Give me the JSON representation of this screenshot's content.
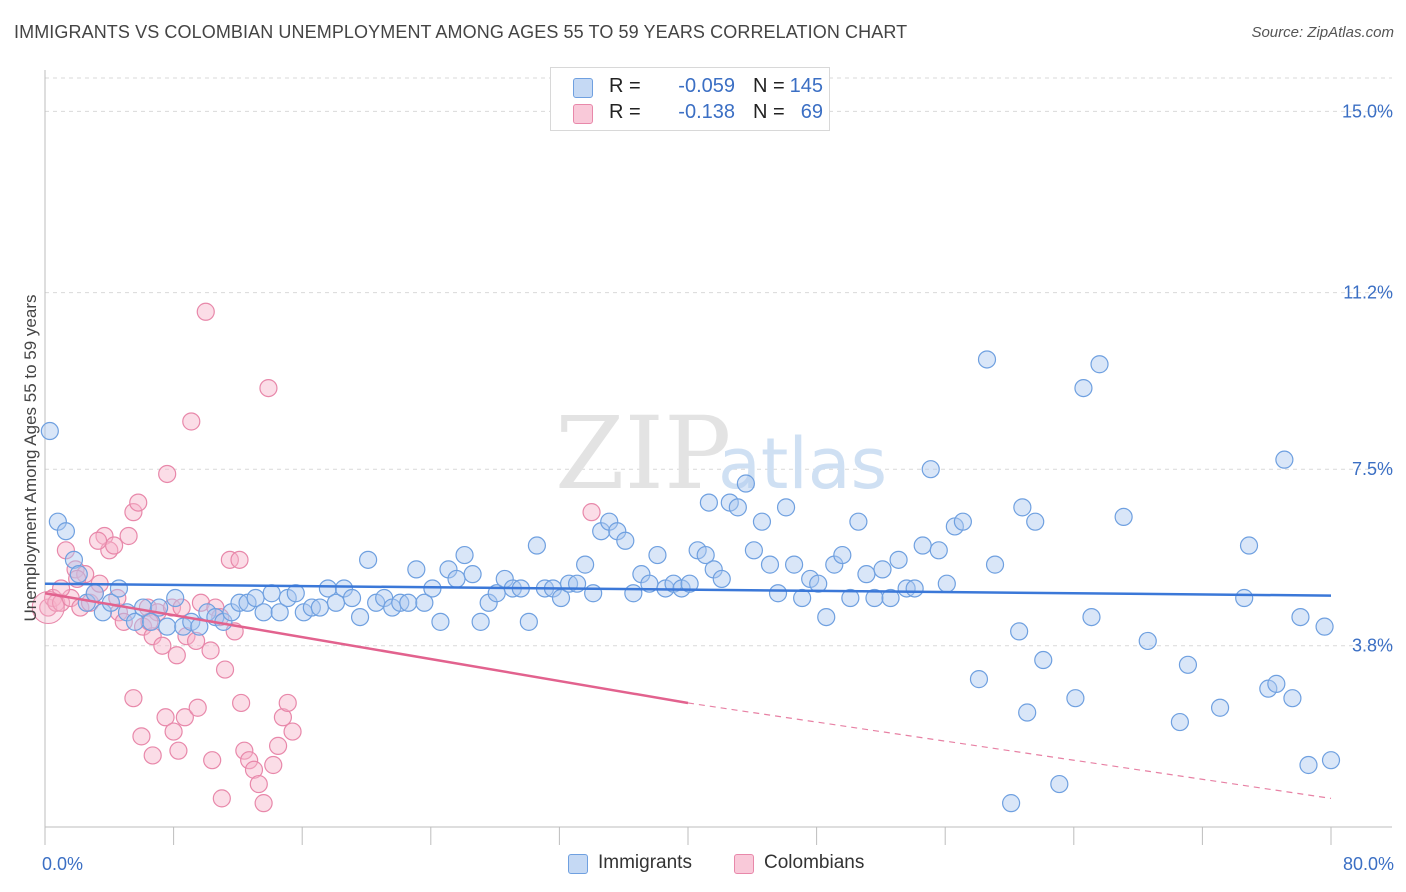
{
  "title": "IMMIGRANTS VS COLOMBIAN UNEMPLOYMENT AMONG AGES 55 TO 59 YEARS CORRELATION CHART",
  "source": "Source: ZipAtlas.com",
  "watermark": {
    "zip": "ZIP",
    "atlas": "atlas"
  },
  "legend": {
    "r_label": "R =",
    "n_label": "N =",
    "series": [
      {
        "name": "Immigrants",
        "r": "-0.059",
        "n": "145",
        "color": "#6fa0e0",
        "fill": "#c5d9f4"
      },
      {
        "name": "Colombians",
        "r": "-0.138",
        "n": "69",
        "color": "#e888aa",
        "fill": "#f9c9d9"
      }
    ]
  },
  "chart_data": {
    "type": "scatter",
    "title": "IMMIGRANTS VS COLOMBIAN UNEMPLOYMENT AMONG AGES 55 TO 59 YEARS CORRELATION CHART",
    "xlabel": "",
    "ylabel": "Unemployment Among Ages 55 to 59 years",
    "xlim": [
      0,
      80
    ],
    "ylim": [
      0,
      15.7
    ],
    "x_tick_labels": [
      "0.0%",
      "80.0%"
    ],
    "y_ticks": [
      3.8,
      7.5,
      11.2,
      15.0
    ],
    "y_tick_labels": [
      "3.8%",
      "7.5%",
      "11.2%",
      "15.0%"
    ],
    "grid": true,
    "legend_placement": "top-center",
    "series": [
      {
        "name": "Immigrants",
        "color": "#3b78d8",
        "trend": {
          "x": [
            0,
            80
          ],
          "y": [
            5.1,
            4.85
          ]
        },
        "points": [
          [
            0.3,
            8.3
          ],
          [
            0.8,
            6.4
          ],
          [
            1.3,
            6.2
          ],
          [
            1.8,
            5.6
          ],
          [
            2.1,
            5.3
          ],
          [
            2.6,
            4.7
          ],
          [
            3.1,
            4.9
          ],
          [
            3.6,
            4.5
          ],
          [
            4.1,
            4.7
          ],
          [
            4.6,
            5.0
          ],
          [
            5.1,
            4.5
          ],
          [
            5.6,
            4.3
          ],
          [
            6.1,
            4.6
          ],
          [
            6.6,
            4.3
          ],
          [
            7.1,
            4.6
          ],
          [
            7.6,
            4.2
          ],
          [
            8.1,
            4.8
          ],
          [
            8.6,
            4.2
          ],
          [
            9.1,
            4.3
          ],
          [
            9.6,
            4.2
          ],
          [
            10.1,
            4.5
          ],
          [
            10.6,
            4.4
          ],
          [
            11.1,
            4.3
          ],
          [
            11.6,
            4.5
          ],
          [
            12.1,
            4.7
          ],
          [
            12.6,
            4.7
          ],
          [
            13.1,
            4.8
          ],
          [
            13.6,
            4.5
          ],
          [
            14.1,
            4.9
          ],
          [
            14.6,
            4.5
          ],
          [
            15.1,
            4.8
          ],
          [
            15.6,
            4.9
          ],
          [
            16.1,
            4.5
          ],
          [
            16.6,
            4.6
          ],
          [
            17.1,
            4.6
          ],
          [
            17.6,
            5.0
          ],
          [
            18.1,
            4.7
          ],
          [
            18.6,
            5.0
          ],
          [
            19.1,
            4.8
          ],
          [
            19.6,
            4.4
          ],
          [
            20.1,
            5.6
          ],
          [
            20.6,
            4.7
          ],
          [
            21.1,
            4.8
          ],
          [
            21.6,
            4.6
          ],
          [
            22.1,
            4.7
          ],
          [
            22.6,
            4.7
          ],
          [
            23.1,
            5.4
          ],
          [
            23.6,
            4.7
          ],
          [
            24.1,
            5.0
          ],
          [
            24.6,
            4.3
          ],
          [
            25.1,
            5.4
          ],
          [
            25.6,
            5.2
          ],
          [
            26.1,
            5.7
          ],
          [
            26.6,
            5.3
          ],
          [
            27.1,
            4.3
          ],
          [
            27.6,
            4.7
          ],
          [
            28.1,
            4.9
          ],
          [
            28.6,
            5.2
          ],
          [
            29.1,
            5.0
          ],
          [
            29.6,
            5.0
          ],
          [
            30.1,
            4.3
          ],
          [
            30.6,
            5.9
          ],
          [
            31.1,
            5.0
          ],
          [
            31.6,
            5.0
          ],
          [
            32.1,
            4.8
          ],
          [
            32.6,
            5.1
          ],
          [
            33.1,
            5.1
          ],
          [
            33.6,
            5.5
          ],
          [
            34.1,
            4.9
          ],
          [
            34.6,
            6.2
          ],
          [
            35.1,
            6.4
          ],
          [
            35.6,
            6.2
          ],
          [
            36.1,
            6.0
          ],
          [
            36.6,
            4.9
          ],
          [
            37.1,
            5.3
          ],
          [
            37.6,
            5.1
          ],
          [
            38.1,
            5.7
          ],
          [
            38.6,
            5.0
          ],
          [
            39.1,
            5.1
          ],
          [
            39.6,
            5.0
          ],
          [
            40.1,
            5.1
          ],
          [
            40.6,
            5.8
          ],
          [
            41.1,
            5.7
          ],
          [
            41.6,
            5.4
          ],
          [
            42.1,
            5.2
          ],
          [
            42.6,
            6.8
          ],
          [
            43.1,
            6.7
          ],
          [
            43.6,
            7.2
          ],
          [
            44.1,
            5.8
          ],
          [
            44.6,
            6.4
          ],
          [
            45.1,
            5.5
          ],
          [
            45.6,
            4.9
          ],
          [
            46.1,
            6.7
          ],
          [
            46.6,
            5.5
          ],
          [
            47.1,
            4.8
          ],
          [
            47.6,
            5.2
          ],
          [
            48.1,
            5.1
          ],
          [
            48.6,
            4.4
          ],
          [
            49.1,
            5.5
          ],
          [
            49.6,
            5.7
          ],
          [
            50.1,
            4.8
          ],
          [
            50.6,
            6.4
          ],
          [
            51.1,
            5.3
          ],
          [
            51.6,
            4.8
          ],
          [
            52.1,
            5.4
          ],
          [
            52.6,
            4.8
          ],
          [
            53.1,
            5.6
          ],
          [
            53.6,
            5.0
          ],
          [
            54.1,
            5.0
          ],
          [
            54.6,
            5.9
          ],
          [
            55.1,
            7.5
          ],
          [
            55.6,
            5.8
          ],
          [
            56.1,
            5.1
          ],
          [
            56.6,
            6.3
          ],
          [
            57.1,
            6.4
          ],
          [
            58.1,
            3.1
          ],
          [
            58.6,
            9.8
          ],
          [
            59.1,
            5.5
          ],
          [
            60.1,
            0.5
          ],
          [
            60.6,
            4.1
          ],
          [
            61.1,
            2.4
          ],
          [
            61.6,
            6.4
          ],
          [
            62.1,
            3.5
          ],
          [
            63.1,
            0.9
          ],
          [
            64.1,
            2.7
          ],
          [
            64.6,
            9.2
          ],
          [
            65.1,
            4.4
          ],
          [
            65.6,
            9.7
          ],
          [
            67.1,
            6.5
          ],
          [
            68.6,
            3.9
          ],
          [
            70.6,
            2.2
          ],
          [
            71.1,
            3.4
          ],
          [
            73.1,
            2.5
          ],
          [
            74.6,
            4.8
          ],
          [
            74.9,
            5.9
          ],
          [
            76.1,
            2.9
          ],
          [
            76.6,
            3.0
          ],
          [
            77.1,
            7.7
          ],
          [
            77.6,
            2.7
          ],
          [
            78.1,
            4.4
          ],
          [
            78.6,
            1.3
          ],
          [
            80.0,
            1.4
          ],
          [
            79.6,
            4.2
          ],
          [
            60.8,
            6.7
          ],
          [
            41.3,
            6.8
          ]
        ]
      },
      {
        "name": "Colombians",
        "color": "#e2628e",
        "trend": {
          "x": [
            0,
            40
          ],
          "y": [
            4.9,
            2.6
          ]
        },
        "trend_dashed": {
          "x": [
            40,
            80
          ],
          "y": [
            2.6,
            0.6
          ]
        },
        "points": [
          [
            0.2,
            4.6
          ],
          [
            0.5,
            4.8
          ],
          [
            0.7,
            4.7
          ],
          [
            1.0,
            4.7
          ],
          [
            1.3,
            5.8
          ],
          [
            1.6,
            4.8
          ],
          [
            1.9,
            5.4
          ],
          [
            2.2,
            4.6
          ],
          [
            2.5,
            5.3
          ],
          [
            2.8,
            4.7
          ],
          [
            3.1,
            4.9
          ],
          [
            3.4,
            5.1
          ],
          [
            3.7,
            6.1
          ],
          [
            4.0,
            5.8
          ],
          [
            4.3,
            5.9
          ],
          [
            4.6,
            4.5
          ],
          [
            4.9,
            4.3
          ],
          [
            5.2,
            6.1
          ],
          [
            5.5,
            6.6
          ],
          [
            5.8,
            6.8
          ],
          [
            6.1,
            4.2
          ],
          [
            6.4,
            4.6
          ],
          [
            6.7,
            4.0
          ],
          [
            7.0,
            4.5
          ],
          [
            7.3,
            3.8
          ],
          [
            7.6,
            7.4
          ],
          [
            7.9,
            4.6
          ],
          [
            8.2,
            3.6
          ],
          [
            8.5,
            4.6
          ],
          [
            8.8,
            4.0
          ],
          [
            9.1,
            8.5
          ],
          [
            9.4,
            3.9
          ],
          [
            9.7,
            4.7
          ],
          [
            10.0,
            10.8
          ],
          [
            10.3,
            3.7
          ],
          [
            10.6,
            4.6
          ],
          [
            10.9,
            4.4
          ],
          [
            11.2,
            3.3
          ],
          [
            11.5,
            5.6
          ],
          [
            11.8,
            4.1
          ],
          [
            12.1,
            5.6
          ],
          [
            12.4,
            1.6
          ],
          [
            12.7,
            1.4
          ],
          [
            13.0,
            1.2
          ],
          [
            13.3,
            0.9
          ],
          [
            13.6,
            0.5
          ],
          [
            13.9,
            9.2
          ],
          [
            14.2,
            1.3
          ],
          [
            14.5,
            1.7
          ],
          [
            14.8,
            2.3
          ],
          [
            15.1,
            2.6
          ],
          [
            15.4,
            2.0
          ],
          [
            5.5,
            2.7
          ],
          [
            6.0,
            1.9
          ],
          [
            6.7,
            1.5
          ],
          [
            7.5,
            2.3
          ],
          [
            8.0,
            2.0
          ],
          [
            8.3,
            1.6
          ],
          [
            8.7,
            2.3
          ],
          [
            9.5,
            2.5
          ],
          [
            10.4,
            1.4
          ],
          [
            11.0,
            0.6
          ],
          [
            12.2,
            2.6
          ],
          [
            34.0,
            6.6
          ],
          [
            1.0,
            5.0
          ],
          [
            2.0,
            5.2
          ],
          [
            3.3,
            6.0
          ],
          [
            4.5,
            4.8
          ],
          [
            6.5,
            4.3
          ]
        ]
      }
    ]
  }
}
